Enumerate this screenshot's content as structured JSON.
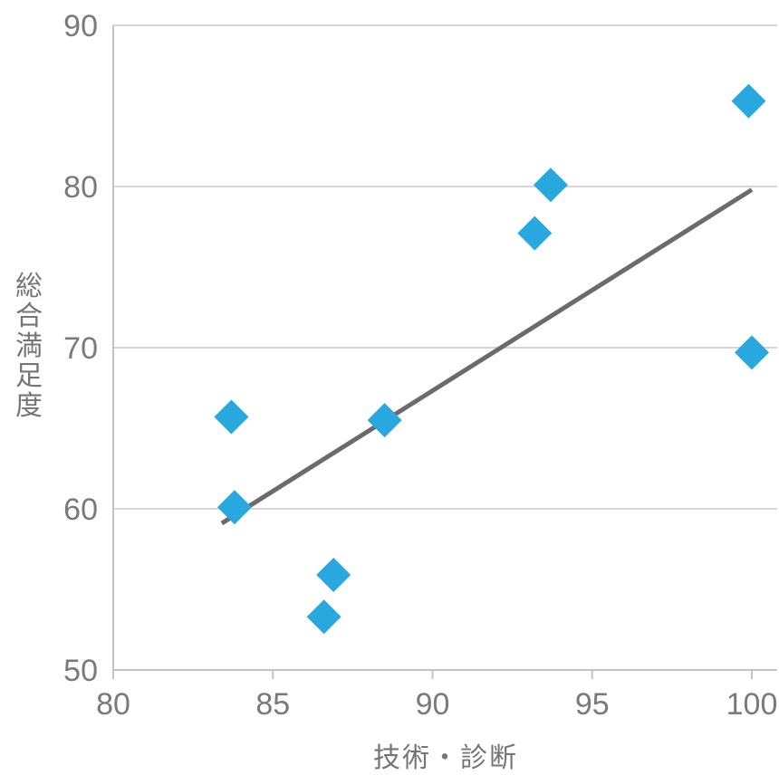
{
  "chart_data": {
    "type": "scatter",
    "title": "",
    "xlabel": "技術・診断",
    "ylabel": "総合満足度",
    "xlim": [
      80,
      100
    ],
    "ylim": [
      50,
      90
    ],
    "xticks": [
      80,
      85,
      90,
      95,
      100
    ],
    "yticks": [
      50,
      60,
      70,
      80,
      90
    ],
    "grid": "horizontal",
    "legend": "none",
    "colors": {
      "grid": "#D6D6D6",
      "axis": "#C4C4C4",
      "text": "#7A7A7A",
      "title": "#757575"
    },
    "series": [
      {
        "name": "総合満足度",
        "marker": "diamond",
        "marker_size": 19,
        "color": "#29A8DF",
        "points": [
          {
            "x": 83.7,
            "y": 65.7
          },
          {
            "x": 83.8,
            "y": 60.1
          },
          {
            "x": 86.6,
            "y": 53.3
          },
          {
            "x": 86.9,
            "y": 55.9
          },
          {
            "x": 88.5,
            "y": 65.5
          },
          {
            "x": 93.2,
            "y": 77.1
          },
          {
            "x": 93.7,
            "y": 80.1
          },
          {
            "x": 99.9,
            "y": 85.3
          },
          {
            "x": 100,
            "y": 69.7
          }
        ]
      }
    ],
    "trendline": {
      "x1": 83.4,
      "y1": 59.1,
      "x2": 100,
      "y2": 79.8,
      "color": "#6B6B6B",
      "width": 5
    }
  }
}
